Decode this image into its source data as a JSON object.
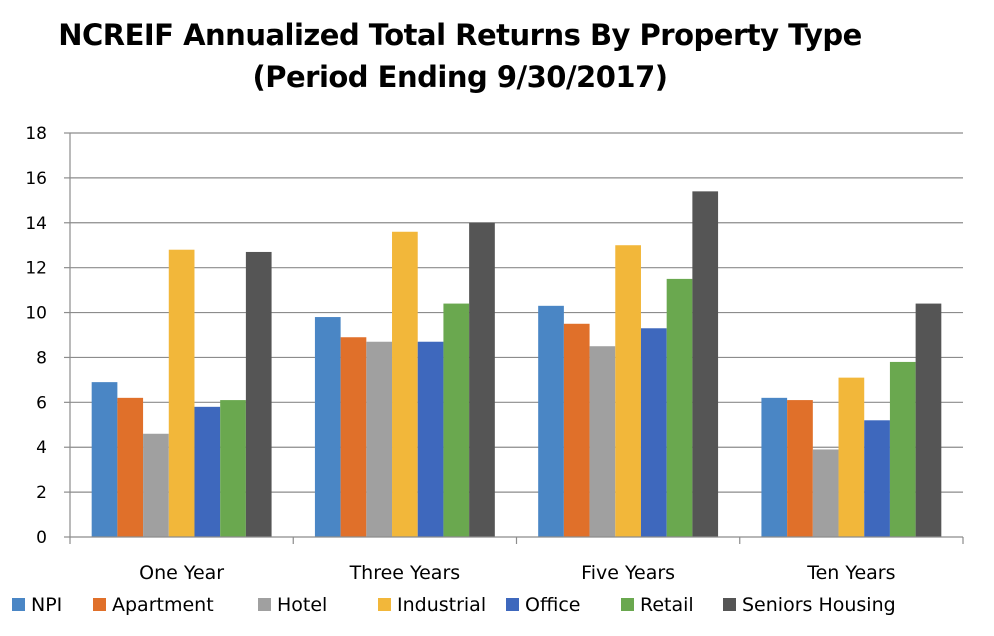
{
  "chart_data": {
    "type": "bar",
    "title": "NCREIF Annualized Total Returns By Property Type",
    "subtitle": "(Period Ending 9/30/2017)",
    "categories": [
      "One Year",
      "Three Years",
      "Five Years",
      "Ten Years"
    ],
    "series": [
      {
        "name": "NPI",
        "color": "#4a86c5",
        "values": [
          6.9,
          9.8,
          10.3,
          6.2
        ]
      },
      {
        "name": "Apartment",
        "color": "#e0702a",
        "values": [
          6.2,
          8.9,
          9.5,
          6.1
        ]
      },
      {
        "name": "Hotel",
        "color": "#a0a0a0",
        "values": [
          4.6,
          8.7,
          8.5,
          3.9
        ]
      },
      {
        "name": "Industrial",
        "color": "#f2b73a",
        "values": [
          12.8,
          13.6,
          13.0,
          7.1
        ]
      },
      {
        "name": "Office",
        "color": "#3e68bd",
        "values": [
          5.8,
          8.7,
          9.3,
          5.2
        ]
      },
      {
        "name": "Retail",
        "color": "#6aa84f",
        "values": [
          6.1,
          10.4,
          11.5,
          7.8
        ]
      },
      {
        "name": "Seniors Housing",
        "color": "#555555",
        "values": [
          12.7,
          14.0,
          15.4,
          10.4
        ]
      }
    ],
    "xlabel": "",
    "ylabel": "",
    "ylim": [
      0,
      18
    ],
    "yticks": [
      0,
      2,
      4,
      6,
      8,
      10,
      12,
      14,
      16,
      18
    ],
    "grid": true,
    "legend_position": "bottom"
  }
}
